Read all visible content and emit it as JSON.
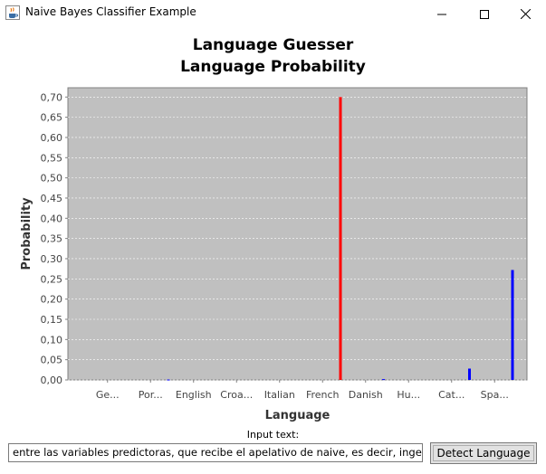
{
  "window": {
    "title": "Naive Bayes Classifier Example",
    "icon": "java-coffee-icon",
    "controls": [
      "minimize-icon",
      "maximize-icon",
      "close-icon"
    ]
  },
  "chart_title_1": "Language Guesser",
  "chart_title_2": "Language Probability",
  "chart_data": {
    "type": "bar",
    "title": "Language Probability",
    "xlabel": "Language",
    "ylabel": "Probability",
    "ylim": [
      0,
      0.7
    ],
    "y_ticks": [
      "0,00",
      "0,05",
      "0,10",
      "0,15",
      "0,20",
      "0,25",
      "0,30",
      "0,35",
      "0,40",
      "0,45",
      "0,50",
      "0,55",
      "0,60",
      "0,65",
      "0,70"
    ],
    "y_tick_values": [
      0,
      0.05,
      0.1,
      0.15,
      0.2,
      0.25,
      0.3,
      0.35,
      0.4,
      0.45,
      0.5,
      0.55,
      0.6,
      0.65,
      0.7
    ],
    "categories": [
      "Ge...",
      "Por...",
      "English",
      "Croa...",
      "Italian",
      "French",
      "Danish",
      "Hu...",
      "Cat...",
      "Spa..."
    ],
    "values": [
      0.0,
      0.001,
      0.0,
      0.0,
      0.0,
      0.7,
      0.002,
      0.0,
      0.028,
      0.272
    ],
    "bar_colors": [
      "#0000ff",
      "#0000ff",
      "#0000ff",
      "#0000ff",
      "#0000ff",
      "#ff0000",
      "#0000ff",
      "#0000ff",
      "#0000ff",
      "#0000ff"
    ],
    "grid": true,
    "plot_background": "#c0c0c0"
  },
  "input_label": "Input text:",
  "input_value": "entre las variables predictoras, que recibe el apelativo de naive, es decir, ingenuo.",
  "detect_button_label": "Detect Language"
}
